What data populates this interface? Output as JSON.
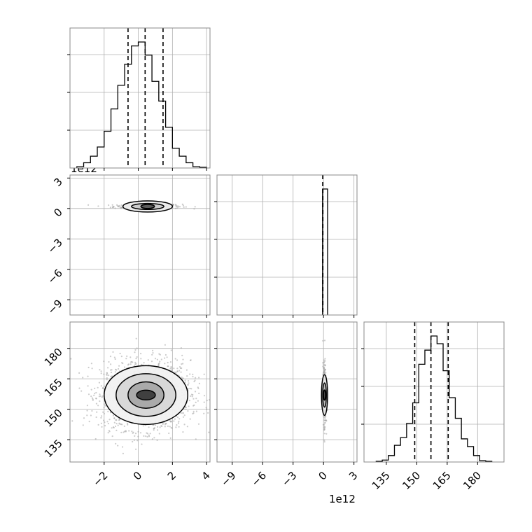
{
  "chart_data": {
    "type": "corner",
    "grid": true,
    "offset_labels": {
      "y_row2": "1e12",
      "x_col2": "1e12"
    },
    "axes": {
      "p0": {
        "ticks": [
          "−2",
          "0",
          "2",
          "4"
        ],
        "range": [
          -4,
          4.2
        ]
      },
      "p1": {
        "ticks": [
          "−9",
          "−6",
          "−3",
          "0",
          "3"
        ],
        "range": [
          -10.5,
          3.3
        ]
      },
      "p2": {
        "ticks": [
          "135",
          "150",
          "165",
          "180"
        ],
        "range": [
          124,
          193
        ]
      }
    },
    "hist_p0": {
      "bin_edges": [
        -3.6,
        -3.2,
        -2.8,
        -2.4,
        -2.0,
        -1.6,
        -1.2,
        -0.8,
        -0.4,
        0.0,
        0.4,
        0.8,
        1.2,
        1.6,
        2.0,
        2.4,
        2.8,
        3.2,
        3.6,
        4.0
      ],
      "counts": [
        0.01,
        0.04,
        0.09,
        0.16,
        0.28,
        0.45,
        0.63,
        0.79,
        0.93,
        0.96,
        0.86,
        0.66,
        0.51,
        0.31,
        0.15,
        0.09,
        0.04,
        0.01,
        0.005
      ],
      "quantiles": [
        -0.6,
        0.4,
        1.45
      ]
    },
    "hist_p1": {
      "bin_edges": [
        -0.1,
        0.4
      ],
      "counts": [
        1.0
      ],
      "quantiles": [
        -0.08
      ]
    },
    "hist_p2": {
      "bin_edges": [
        130,
        133,
        136,
        139,
        142,
        145,
        148,
        151,
        154,
        157,
        160,
        163,
        166,
        169,
        172,
        175,
        178,
        181,
        184,
        187
      ],
      "counts": [
        0.005,
        0.015,
        0.05,
        0.13,
        0.19,
        0.3,
        0.46,
        0.76,
        0.87,
        0.98,
        0.92,
        0.71,
        0.5,
        0.34,
        0.18,
        0.12,
        0.05,
        0.01,
        0.005
      ],
      "quantiles": [
        149,
        157,
        165.5
      ]
    },
    "scatter_p0_p1": {
      "center": [
        0.55,
        0.2
      ],
      "contours": [
        {
          "rx": 1.45,
          "ry": 0.55
        },
        {
          "rx": 0.95,
          "ry": 0.3
        },
        {
          "rx": 0.4,
          "ry": 0.2
        }
      ]
    },
    "scatter_p0_p2": {
      "center": [
        0.45,
        157
      ],
      "contours": [
        {
          "rx": 2.45,
          "ry": 14.5
        },
        {
          "rx": 1.75,
          "ry": 10.5
        },
        {
          "rx": 1.05,
          "ry": 6.5
        },
        {
          "rx": 0.55,
          "ry": 2.4
        }
      ]
    },
    "scatter_p1_p2": {
      "center": [
        0.1,
        157
      ],
      "contours": [
        {
          "rx": 0.3,
          "ry": 10
        },
        {
          "rx": 0.18,
          "ry": 6
        },
        {
          "rx": 0.1,
          "ry": 2.5
        }
      ]
    }
  }
}
